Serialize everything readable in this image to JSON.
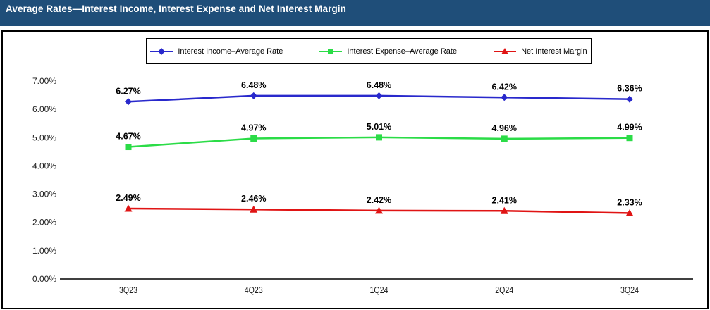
{
  "title_bar": {
    "title": "Average Rates—Interest Income, Interest Expense and Net Interest Margin",
    "bg_color": "#1F4E79",
    "text_color": "#FFFFFF"
  },
  "chart_data": {
    "type": "line",
    "title": "Average Rates—Interest Income, Interest Expense and Net Interest Margin",
    "categories": [
      "3Q23",
      "4Q23",
      "1Q24",
      "2Q24",
      "3Q24"
    ],
    "series": [
      {
        "name": "Interest Income–Average Rate",
        "color": "#2929CC",
        "marker": "diamond",
        "values": [
          6.27,
          6.48,
          6.48,
          6.42,
          6.36
        ],
        "labels": [
          "6.27%",
          "6.48%",
          "6.48%",
          "6.42%",
          "6.36%"
        ]
      },
      {
        "name": "Interest Expense–Average Rate",
        "color": "#2BDC47",
        "marker": "square",
        "values": [
          4.67,
          4.97,
          5.01,
          4.96,
          4.99
        ],
        "labels": [
          "4.67%",
          "4.97%",
          "5.01%",
          "4.96%",
          "4.99%"
        ]
      },
      {
        "name": "Net Interest Margin",
        "color": "#E01414",
        "marker": "triangle",
        "values": [
          2.49,
          2.46,
          2.42,
          2.41,
          2.33
        ],
        "labels": [
          "2.49%",
          "2.46%",
          "2.42%",
          "2.41%",
          "2.33%"
        ]
      }
    ],
    "y_axis": {
      "min": 0,
      "max": 7,
      "step": 1,
      "tick_labels": [
        "0.00%",
        "1.00%",
        "2.00%",
        "3.00%",
        "4.00%",
        "5.00%",
        "6.00%",
        "7.00%"
      ]
    },
    "xlabel": "",
    "ylabel": "",
    "grid": false,
    "legend_position": "top",
    "data_labels": true
  }
}
